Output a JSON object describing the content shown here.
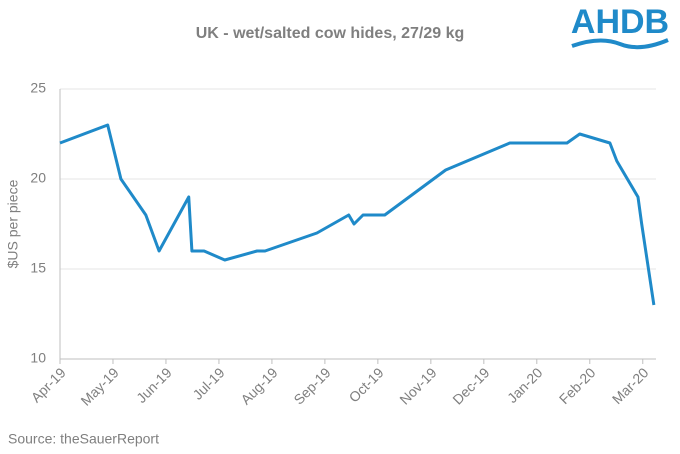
{
  "chart_data": {
    "type": "line",
    "title": "UK - wet/salted cow hides, 27/29 kg",
    "y_label": "$US per piece",
    "source": "Source:  theSauerReport",
    "logo": "AHDB",
    "x": [
      0,
      0.9,
      1.15,
      1.62,
      1.87,
      2.43,
      2.49,
      2.72,
      3.11,
      3.72,
      3.87,
      4.85,
      5.45,
      5.55,
      5.72,
      6.13,
      7.28,
      8.49,
      9.57,
      9.81,
      10.38,
      10.51,
      10.91,
      10.98,
      11.21
    ],
    "series": [
      {
        "name": "UK - wet/salted cow hides",
        "color": "#1f8ac9",
        "values": [
          22,
          23,
          20,
          18,
          16,
          19,
          16,
          16,
          15.5,
          16,
          16,
          17,
          18,
          17.5,
          18,
          18,
          20.5,
          22,
          22,
          22.5,
          22,
          21,
          19,
          17.5,
          13
        ]
      }
    ],
    "xlim": [
      0,
      11.25
    ],
    "xticks": [
      {
        "value": 0,
        "label": "Apr-19"
      },
      {
        "value": 1,
        "label": "May-19"
      },
      {
        "value": 2,
        "label": "Jun-19"
      },
      {
        "value": 3,
        "label": "Jul-19"
      },
      {
        "value": 4,
        "label": "Aug-19"
      },
      {
        "value": 5,
        "label": "Sep-19"
      },
      {
        "value": 6,
        "label": "Oct-19"
      },
      {
        "value": 7,
        "label": "Nov-19"
      },
      {
        "value": 8,
        "label": "Dec-19"
      },
      {
        "value": 9,
        "label": "Jan-20"
      },
      {
        "value": 10,
        "label": "Feb-20"
      },
      {
        "value": 11,
        "label": "Mar-20"
      }
    ],
    "ylim": [
      10,
      25
    ],
    "yticks": [
      10,
      15,
      20,
      25
    ],
    "grid": true
  }
}
